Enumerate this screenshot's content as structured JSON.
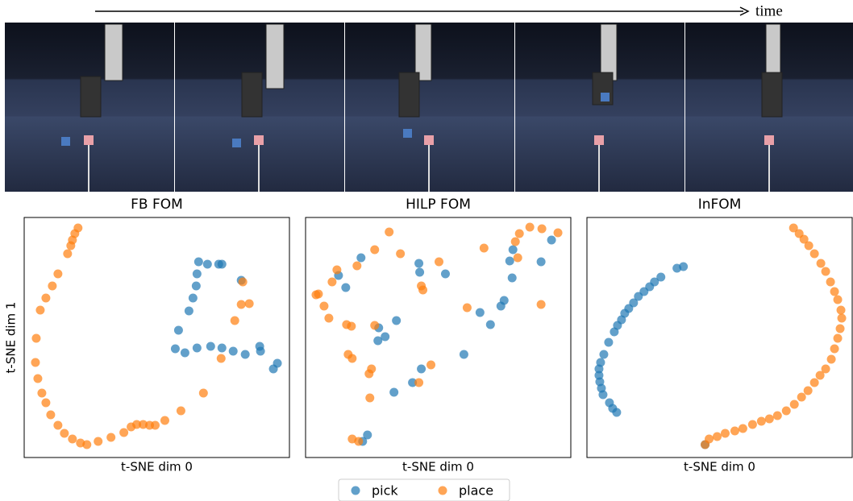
{
  "time_label": "time",
  "chart_data": [
    {
      "type": "scatter",
      "title": "FB FOM",
      "x_label": "t-SNE dim 0",
      "y_label": "t-SNE dim 1",
      "xlim": [
        0,
        330
      ],
      "ylim": [
        0,
        298
      ],
      "series": [
        {
          "name": "pick",
          "color": "#1f77b4",
          "x": [
            188,
            200,
            215,
            232,
            246,
            260,
            275,
            293,
            294,
            310,
            315,
            192,
            205,
            210,
            214,
            215,
            217,
            228,
            242,
            246,
            270
          ],
          "values": [
            135,
            130,
            136,
            138,
            136,
            132,
            128,
            138,
            132,
            110,
            117,
            158,
            182,
            198,
            213,
            228,
            243,
            240,
            240,
            240,
            220
          ]
        },
        {
          "name": "place",
          "color": "#ff7f0e",
          "x": [
            67,
            63,
            60,
            58,
            54,
            42,
            35,
            27,
            20,
            15,
            14,
            17,
            22,
            27,
            33,
            42,
            50,
            60,
            70,
            78,
            92,
            108,
            124,
            133,
            140,
            148,
            156,
            163,
            175,
            195,
            223,
            245,
            262,
            280,
            270,
            272
          ],
          "values": [
            285,
            278,
            270,
            263,
            253,
            228,
            213,
            198,
            183,
            148,
            118,
            98,
            80,
            68,
            53,
            40,
            30,
            23,
            18,
            16,
            20,
            25,
            31,
            38,
            41,
            41,
            40,
            40,
            46,
            58,
            80,
            123,
            170,
            191,
            190,
            218
          ]
        }
      ]
    },
    {
      "type": "scatter",
      "title": "HILP FOM",
      "x_label": "t-SNE dim 0",
      "xlim": [
        0,
        330
      ],
      "ylim": [
        0,
        298
      ],
      "series": [
        {
          "name": "pick",
          "color": "#1f77b4",
          "x": [
            69,
            50,
            41,
            91,
            99,
            90,
            113,
            141,
            142,
            174,
            217,
            230,
            197,
            144,
            133,
            110,
            77,
            71,
            254,
            258,
            306,
            293,
            257,
            247,
            243
          ],
          "values": [
            248,
            211,
            226,
            161,
            150,
            145,
            170,
            241,
            230,
            228,
            180,
            165,
            128,
            110,
            93,
            81,
            28,
            20,
            244,
            258,
            270,
            243,
            223,
            195,
            188
          ]
        },
        {
          "name": "place",
          "color": "#ff7f0e",
          "x": [
            104,
            86,
            64,
            39,
            33,
            16,
            23,
            13,
            29,
            51,
            57,
            53,
            58,
            80,
            82,
            86,
            118,
            166,
            144,
            146,
            222,
            266,
            279,
            294,
            314,
            261,
            293,
            201,
            156,
            141,
            79,
            58,
            66,
            264
          ],
          "values": [
            280,
            258,
            238,
            233,
            218,
            203,
            188,
            202,
            173,
            165,
            163,
            128,
            123,
            74,
            110,
            164,
            253,
            243,
            213,
            208,
            260,
            278,
            286,
            284,
            279,
            268,
            190,
            186,
            115,
            93,
            104,
            23,
            20,
            248
          ]
        }
      ]
    },
    {
      "type": "scatter",
      "title": "InFOM",
      "x_label": "t-SNE dim 0",
      "xlim": [
        0,
        330
      ],
      "ylim": [
        0,
        298
      ],
      "series": [
        {
          "name": "pick",
          "color": "#1f77b4",
          "x": [
            120,
            112,
            92,
            84,
            78,
            71,
            64,
            58,
            52,
            47,
            43,
            38,
            34,
            27,
            21,
            17,
            15,
            15,
            16,
            18,
            20,
            28,
            32,
            37,
            147
          ],
          "values": [
            237,
            235,
            224,
            218,
            212,
            206,
            200,
            192,
            185,
            179,
            171,
            164,
            156,
            143,
            128,
            118,
            110,
            102,
            94,
            86,
            78,
            68,
            61,
            56,
            16
          ]
        },
        {
          "name": "place",
          "color": "#ff7f0e",
          "x": [
            257,
            264,
            270,
            276,
            283,
            291,
            297,
            303,
            308,
            312,
            316,
            317,
            315,
            312,
            308,
            304,
            297,
            290,
            283,
            275,
            267,
            258,
            248,
            237,
            227,
            217,
            206,
            194,
            184,
            172,
            162,
            152,
            147
          ],
          "values": [
            285,
            278,
            271,
            263,
            253,
            241,
            231,
            218,
            206,
            196,
            183,
            173,
            160,
            148,
            135,
            122,
            110,
            102,
            93,
            83,
            75,
            66,
            58,
            52,
            48,
            45,
            41,
            36,
            33,
            30,
            26,
            23,
            16
          ]
        }
      ]
    }
  ]
}
